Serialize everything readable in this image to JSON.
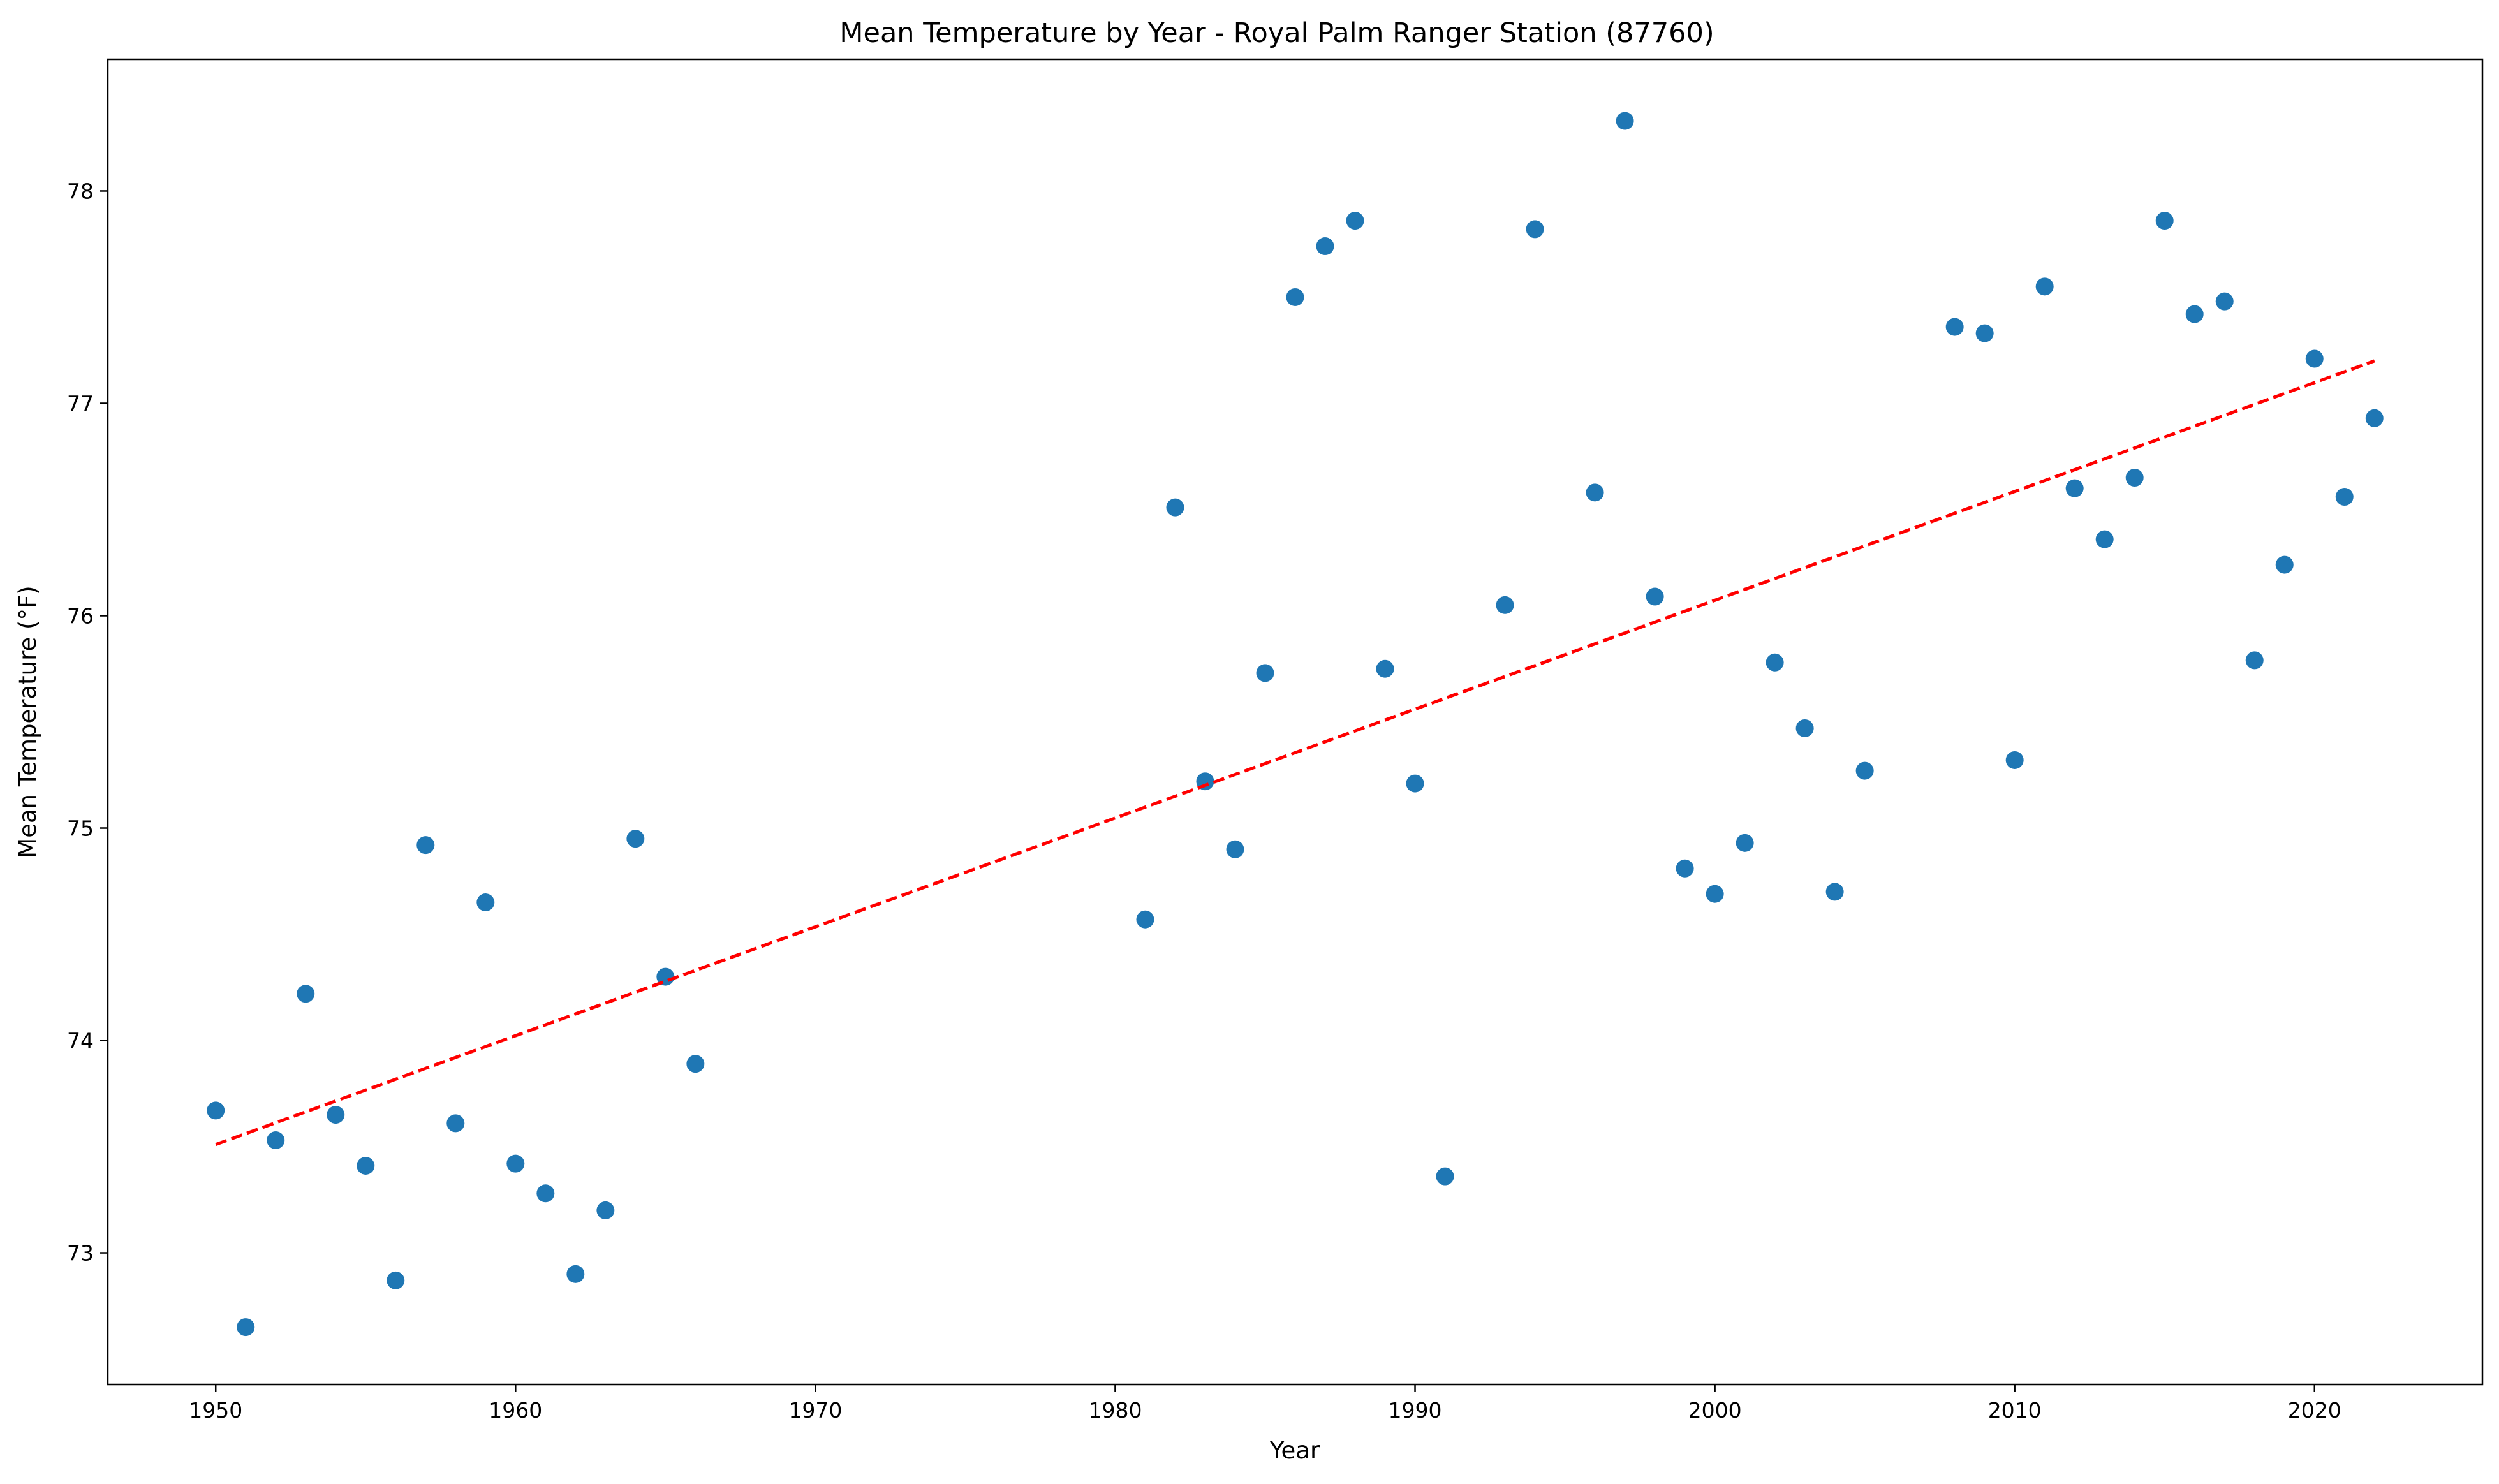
{
  "chart_data": {
    "type": "scatter",
    "title": "Mean Temperature by Year - Royal Palm Ranger Station (87760)",
    "xlabel": "Year",
    "ylabel": "Mean Temperature (°F)",
    "xlim": [
      1946.4,
      2025.6
    ],
    "ylim": [
      72.38,
      78.62
    ],
    "xticks": [
      1950,
      1960,
      1970,
      1980,
      1990,
      2000,
      2010,
      2020
    ],
    "xtick_labels": [
      "1950",
      "1960",
      "1970",
      "1980",
      "1990",
      "2000",
      "2010",
      "2020"
    ],
    "yticks": [
      73,
      74,
      75,
      76,
      77,
      78
    ],
    "ytick_labels": [
      "73",
      "74",
      "75",
      "76",
      "77",
      "78"
    ],
    "grid": false,
    "colors": {
      "points": "#1f77b4",
      "trend": "#ff0000"
    },
    "series": [
      {
        "type": "scatter",
        "x": [
          1950,
          1951,
          1952,
          1953,
          1954,
          1955,
          1956,
          1957,
          1958,
          1959,
          1960,
          1961,
          1962,
          1963,
          1964,
          1965,
          1966,
          1981,
          1982,
          1983,
          1984,
          1985,
          1986,
          1987,
          1988,
          1989,
          1990,
          1991,
          1993,
          1994,
          1996,
          1997,
          1998,
          1999,
          2000,
          2001,
          2002,
          2003,
          2004,
          2005,
          2008,
          2009,
          2010,
          2011,
          2012,
          2013,
          2014,
          2015,
          2016,
          2017,
          2018,
          2019,
          2020,
          2021,
          2022
        ],
        "y": [
          73.67,
          72.65,
          73.53,
          74.22,
          73.65,
          73.41,
          72.87,
          74.92,
          73.61,
          74.65,
          73.42,
          73.28,
          72.9,
          73.2,
          74.95,
          74.3,
          73.89,
          74.57,
          76.51,
          75.22,
          74.9,
          75.73,
          77.5,
          77.74,
          77.86,
          75.75,
          75.21,
          73.36,
          76.05,
          77.82,
          76.58,
          78.33,
          76.09,
          74.81,
          74.69,
          74.93,
          75.78,
          75.47,
          74.7,
          75.27,
          77.36,
          77.33,
          75.32,
          77.55,
          76.6,
          76.36,
          76.65,
          77.86,
          77.42,
          77.48,
          75.79,
          76.24,
          77.21,
          76.56,
          76.93
        ]
      },
      {
        "type": "line",
        "style": "dashed",
        "x": [
          1950,
          2022
        ],
        "y": [
          73.51,
          77.2
        ]
      }
    ]
  }
}
